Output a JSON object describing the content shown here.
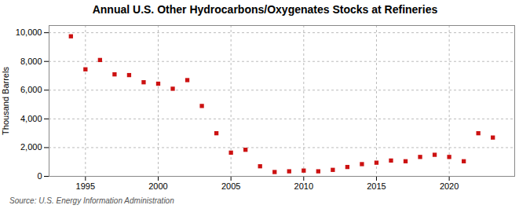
{
  "chart_data": {
    "type": "scatter",
    "title": "Annual U.S. Other Hydrocarbons/Oxygenates Stocks at Refineries",
    "ylabel": "Thousand Barrels",
    "source": "Source: U.S. Energy Information Administration",
    "x": [
      1994,
      1995,
      1996,
      1997,
      1998,
      1999,
      2000,
      2001,
      2002,
      2003,
      2004,
      2005,
      2006,
      2007,
      2008,
      2009,
      2010,
      2011,
      2012,
      2013,
      2014,
      2015,
      2016,
      2017,
      2018,
      2019,
      2020,
      2021,
      2022,
      2023
    ],
    "values": [
      9750,
      7450,
      8100,
      7100,
      7050,
      6550,
      6450,
      6100,
      6700,
      4900,
      3000,
      1650,
      1850,
      700,
      300,
      350,
      400,
      350,
      450,
      650,
      850,
      950,
      1100,
      1050,
      1350,
      1500,
      1350,
      1050,
      3000,
      2700
    ],
    "color": "#cc1111",
    "marker": "square",
    "xlim": [
      1992.5,
      2024.5
    ],
    "xticks": [
      1995,
      2000,
      2005,
      2010,
      2015,
      2020
    ],
    "ylim": [
      0,
      10500
    ],
    "yticks": [
      0,
      {
        "value": 2000,
        "label": "2,000"
      },
      {
        "value": 4000,
        "label": "4,000"
      },
      {
        "value": 6000,
        "label": "6,000"
      },
      {
        "value": 8000,
        "label": "8,000"
      },
      {
        "value": 10000,
        "label": "10,000"
      }
    ],
    "grid": true
  }
}
